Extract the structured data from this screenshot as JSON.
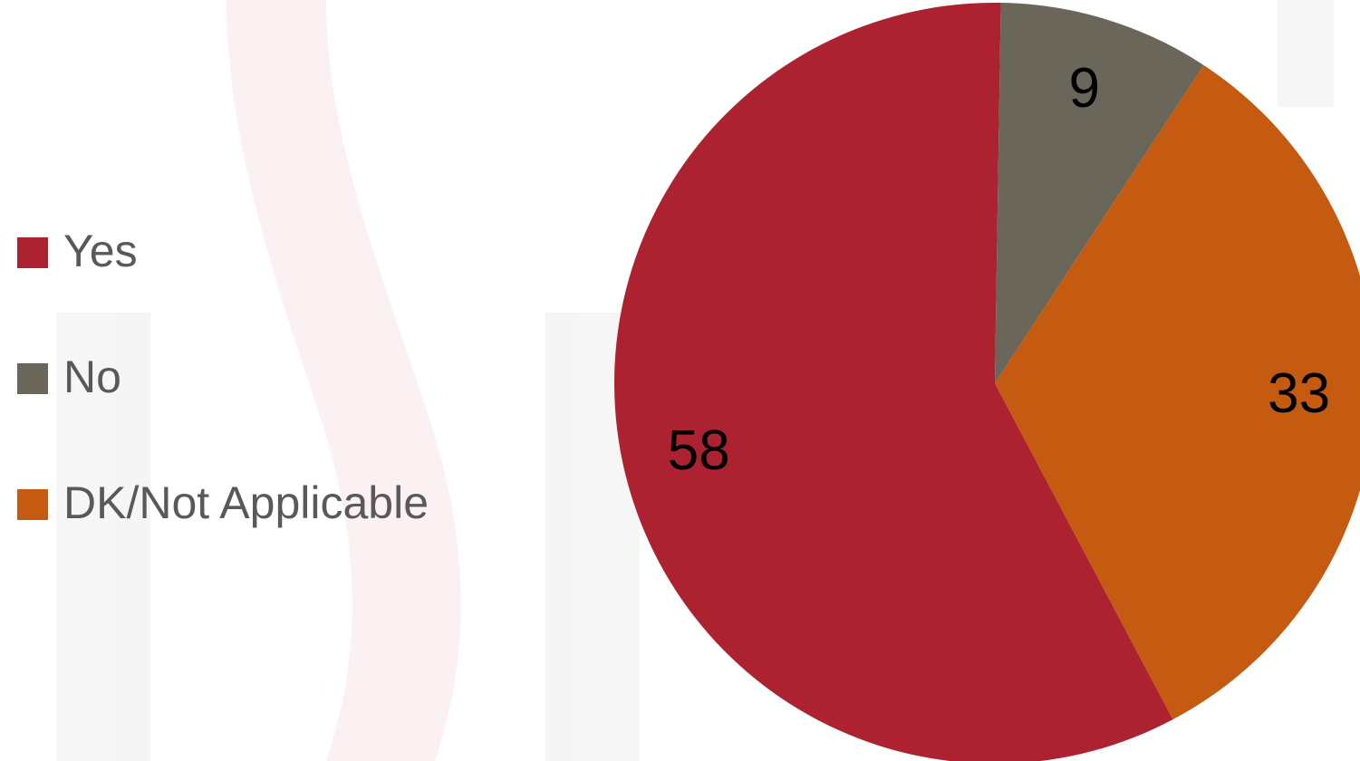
{
  "chart_data": {
    "type": "pie",
    "categories": [
      "Yes",
      "No",
      "DK/Not Applicable"
    ],
    "values": [
      58,
      9,
      33
    ],
    "colors": [
      "#ad2231",
      "#6b665a",
      "#c55a11"
    ],
    "legend": "left"
  }
}
